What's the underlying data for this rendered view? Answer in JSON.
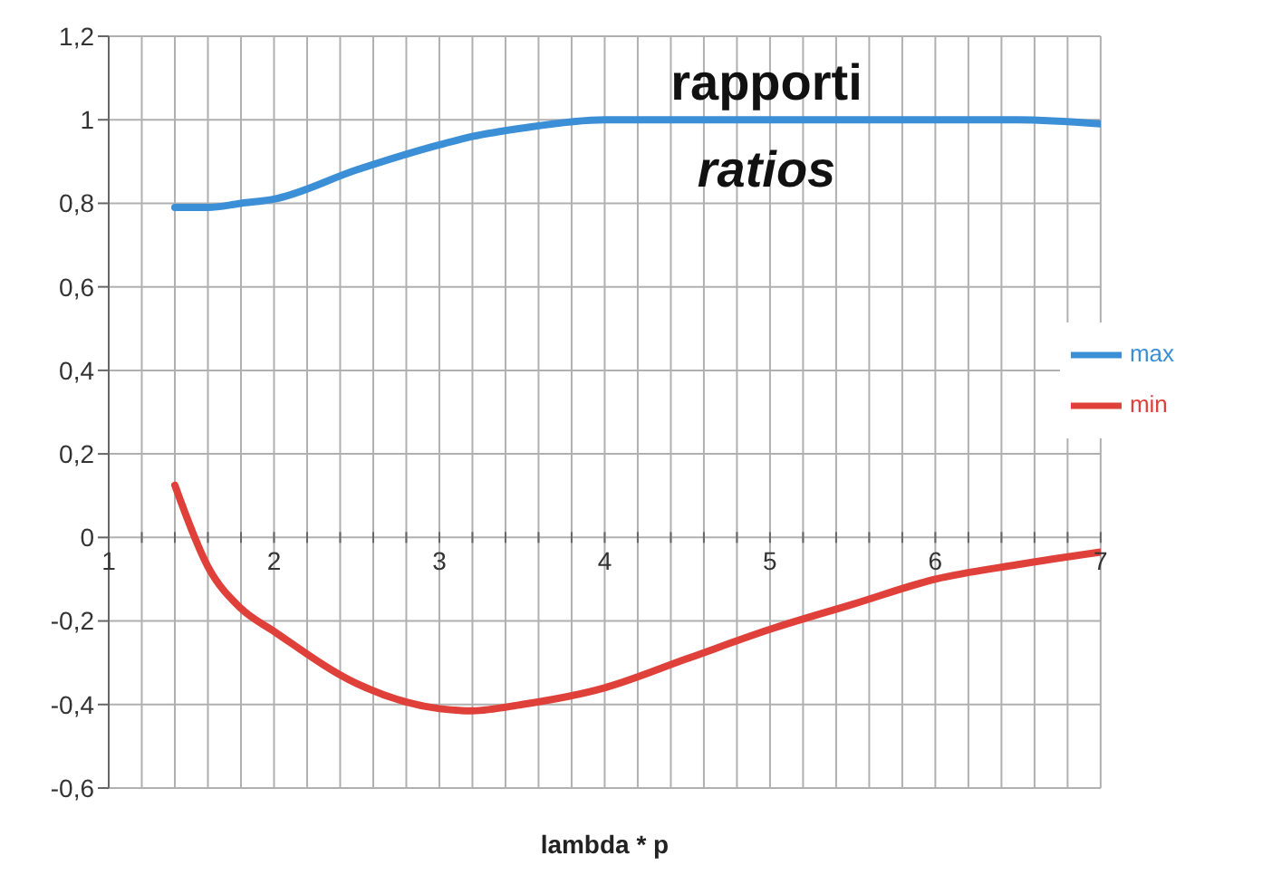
{
  "chart_data": {
    "type": "line",
    "title": "rapporti",
    "subtitle": "ratios",
    "xlabel": "lambda * p",
    "xlim": [
      1,
      7
    ],
    "xticks": [
      1,
      {
        "value": 1.2,
        "label": null
      },
      {
        "value": 1.4,
        "label": null
      },
      {
        "value": 1.6,
        "label": null
      },
      {
        "value": 1.8,
        "label": null
      },
      2,
      {
        "value": 2.2,
        "label": null
      },
      {
        "value": 2.4,
        "label": null
      },
      {
        "value": 2.6,
        "label": null
      },
      {
        "value": 2.8,
        "label": null
      },
      3,
      {
        "value": 3.2,
        "label": null
      },
      {
        "value": 3.4,
        "label": null
      },
      {
        "value": 3.6,
        "label": null
      },
      {
        "value": 3.8,
        "label": null
      },
      4,
      {
        "value": 4.2,
        "label": null
      },
      {
        "value": 4.4,
        "label": null
      },
      {
        "value": 4.6,
        "label": null
      },
      {
        "value": 4.8,
        "label": null
      },
      5,
      {
        "value": 5.2,
        "label": null
      },
      {
        "value": 5.4,
        "label": null
      },
      {
        "value": 5.6,
        "label": null
      },
      {
        "value": 5.8,
        "label": null
      },
      6,
      {
        "value": 6.2,
        "label": null
      },
      {
        "value": 6.4,
        "label": null
      },
      {
        "value": 6.6,
        "label": null
      },
      {
        "value": 6.8,
        "label": null
      },
      7
    ],
    "ylim": [
      -0.6,
      1.2
    ],
    "yticks": [
      {
        "value": -0.6,
        "label": "-0,6"
      },
      {
        "value": -0.4,
        "label": "-0,4"
      },
      {
        "value": -0.2,
        "label": "-0,2"
      },
      0,
      {
        "value": 0.2,
        "label": "0,2"
      },
      {
        "value": 0.4,
        "label": "0,4"
      },
      {
        "value": 0.6,
        "label": "0,6"
      },
      {
        "value": 0.8,
        "label": "0,8"
      },
      1,
      {
        "value": 1.2,
        "label": "1,2"
      }
    ],
    "grid": true,
    "legend": "right",
    "marker": "none",
    "line_style": "solid",
    "x": [
      1.4,
      1.6,
      1.8,
      2,
      2.5,
      3,
      3.2,
      3.5,
      4,
      4.5,
      5,
      5.5,
      6,
      6.5,
      7
    ],
    "series": [
      {
        "name": "max",
        "color": "#3a8fd6",
        "values": [
          0.79,
          0.79,
          0.8,
          0.81,
          0.88,
          0.94,
          0.96,
          0.98,
          1.0,
          1.0,
          1.0,
          1.0,
          1.0,
          1.0,
          0.99
        ]
      },
      {
        "name": "min",
        "color": "#e0403a",
        "values": [
          0.125,
          -0.07,
          -0.17,
          -0.225,
          -0.35,
          -0.41,
          -0.415,
          -0.4,
          -0.36,
          -0.29,
          -0.22,
          -0.16,
          -0.1,
          -0.065,
          -0.035
        ]
      }
    ]
  }
}
